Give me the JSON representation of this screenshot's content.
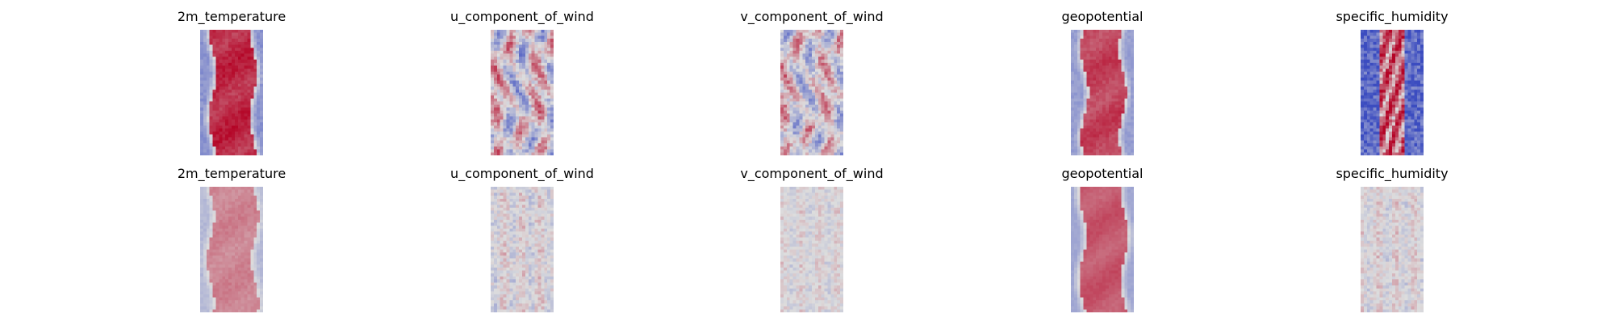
{
  "chart_data": {
    "type": "heatmap",
    "colormap": "coolwarm",
    "axes": "off",
    "colors": {
      "cold": "#3b4cc0",
      "neutral": "#dddddd",
      "warm": "#b40426"
    },
    "rows": [
      {
        "panels": [
          {
            "title": "2m_temperature",
            "pattern": "band",
            "intensity": 0.92,
            "bandHalfWidth": 0.32,
            "noise": 0.25,
            "seed": 11
          },
          {
            "title": "u_component_of_wind",
            "pattern": "swirl",
            "intensity": 0.75,
            "noise": 0.6,
            "seed": 21
          },
          {
            "title": "v_component_of_wind",
            "pattern": "swirl",
            "intensity": 0.65,
            "noise": 0.7,
            "seed": 31
          },
          {
            "title": "geopotential",
            "pattern": "band",
            "intensity": 0.78,
            "bandHalfWidth": 0.3,
            "noise": 0.2,
            "seed": 41
          },
          {
            "title": "specific_humidity",
            "pattern": "humid",
            "intensity": 0.95,
            "noise": 0.5,
            "seed": 51
          }
        ]
      },
      {
        "panels": [
          {
            "title": "2m_temperature",
            "pattern": "band",
            "intensity": 0.45,
            "bandHalfWidth": 0.35,
            "noise": 0.15,
            "seed": 12
          },
          {
            "title": "u_component_of_wind",
            "pattern": "stripes",
            "intensity": 0.35,
            "noise": 0.5,
            "seed": 22
          },
          {
            "title": "v_component_of_wind",
            "pattern": "stripes",
            "intensity": 0.25,
            "noise": 0.5,
            "seed": 32
          },
          {
            "title": "geopotential",
            "pattern": "band",
            "intensity": 0.68,
            "bandHalfWidth": 0.33,
            "noise": 0.1,
            "seed": 42
          },
          {
            "title": "specific_humidity",
            "pattern": "stripes",
            "intensity": 0.3,
            "noise": 0.5,
            "seed": 52
          }
        ]
      }
    ]
  }
}
